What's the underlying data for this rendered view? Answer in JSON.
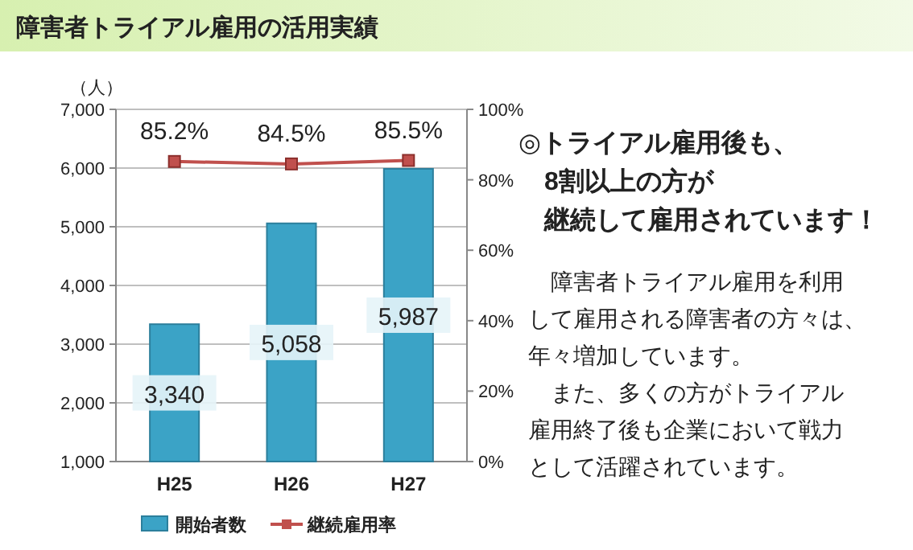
{
  "chart_data": [
    {
      "type": "bar",
      "title": "障害者トライアル雇用の活用実績",
      "ylabel": "（人）",
      "categories": [
        "H25",
        "H26",
        "H27"
      ],
      "series": [
        {
          "name": "開始者数",
          "type": "bar",
          "color": "#3ba3c6",
          "values": [
            3340,
            5058,
            5987
          ],
          "value_labels": [
            "3,340",
            "5,058",
            "5,987"
          ]
        },
        {
          "name": "継続雇用率",
          "type": "line",
          "axis": "y2",
          "color": "#c0504d",
          "values": [
            85.2,
            84.5,
            85.5
          ],
          "value_labels": [
            "85.2%",
            "84.5%",
            "85.5%"
          ]
        }
      ],
      "marker": "square",
      "ylim": [
        1000,
        7000
      ],
      "yticks": [
        {
          "value": 1000,
          "label": "1,000"
        },
        {
          "value": 2000,
          "label": "2,000"
        },
        {
          "value": 3000,
          "label": "3,000"
        },
        {
          "value": 4000,
          "label": "4,000"
        },
        {
          "value": 5000,
          "label": "5,000"
        },
        {
          "value": 6000,
          "label": "6,000"
        },
        {
          "value": 7000,
          "label": "7,000"
        }
      ],
      "y2lim": [
        0,
        100
      ],
      "y2ticks": [
        {
          "value": 0,
          "label": "0%"
        },
        {
          "value": 20,
          "label": "20%"
        },
        {
          "value": 40,
          "label": "40%"
        },
        {
          "value": 60,
          "label": "60%"
        },
        {
          "value": 80,
          "label": "80%"
        },
        {
          "value": 100,
          "label": "100%"
        }
      ],
      "grid": "y",
      "legend": "bottom"
    },
    {
      "type": "other",
      "annotations": [
        "◎トライアル雇用後も、",
        "　8割以上の方が",
        "　継続して雇用されています！",
        "　障害者トライアル雇用を利用",
        "して雇用される障害者の方々は、",
        "年々増加しています。",
        "　また、多くの方がトライアル",
        "雇用終了後も企業において戦力",
        "として活躍されています。"
      ]
    }
  ]
}
